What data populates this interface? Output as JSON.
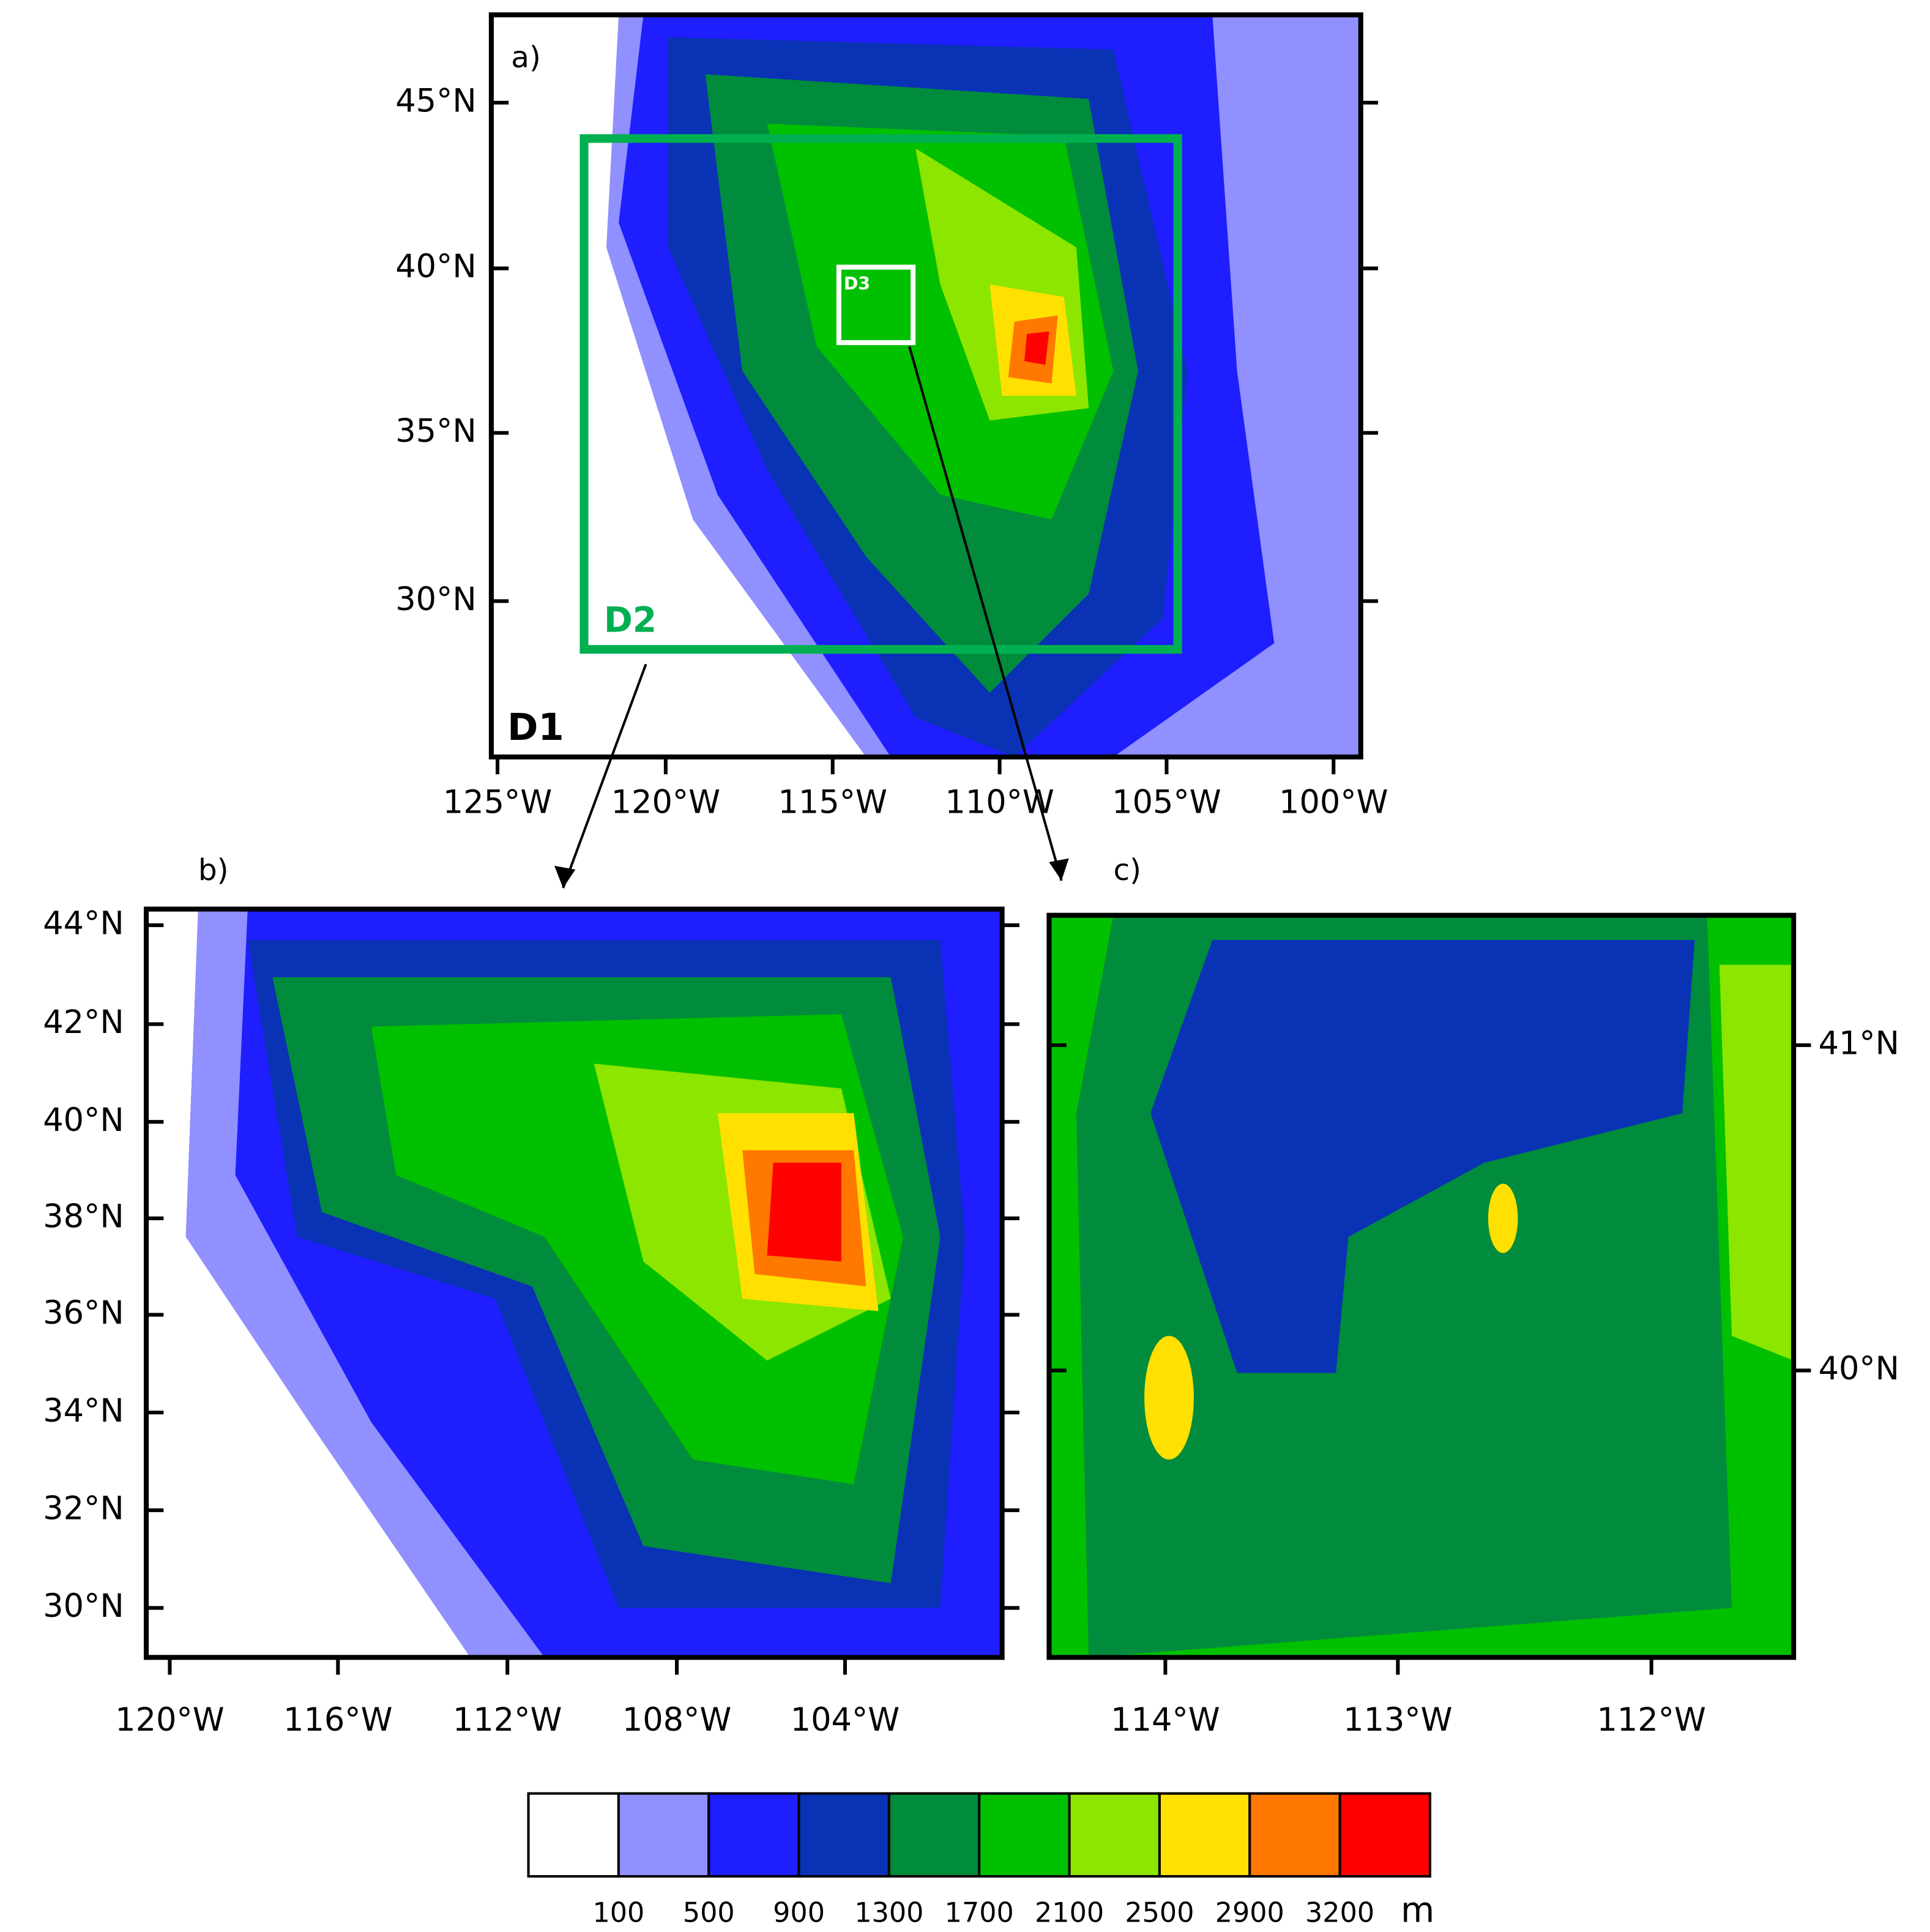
{
  "panels": [
    {
      "label": "a)",
      "domain": "D1",
      "boxes": [
        "D2",
        "D3"
      ],
      "lat_ticks": [
        "45°N",
        "40°N",
        "35°N",
        "30°N"
      ],
      "lon_ticks": [
        "125°W",
        "120°W",
        "115°W",
        "110°W",
        "105°W",
        "100°W"
      ]
    },
    {
      "label": "b)",
      "lat_ticks": [
        "44°N",
        "42°N",
        "40°N",
        "38°N",
        "36°N",
        "34°N",
        "32°N",
        "30°N"
      ],
      "lon_ticks": [
        "120°W",
        "116°W",
        "112°W",
        "108°W",
        "104°W"
      ]
    },
    {
      "label": "c)",
      "lat_ticks": [
        "41°N",
        "40°N"
      ],
      "lon_ticks": [
        "114°W",
        "113°W",
        "112°W"
      ]
    }
  ],
  "colorbar": {
    "colors": [
      "#ffffff",
      "#9090ff",
      "#1e1eff",
      "#0a32b4",
      "#008c3c",
      "#00c000",
      "#8ce600",
      "#ffe000",
      "#ff7800",
      "#ff0000"
    ],
    "levels": [
      100,
      500,
      900,
      1300,
      1700,
      2100,
      2500,
      2900,
      3200
    ],
    "unit": "m"
  }
}
